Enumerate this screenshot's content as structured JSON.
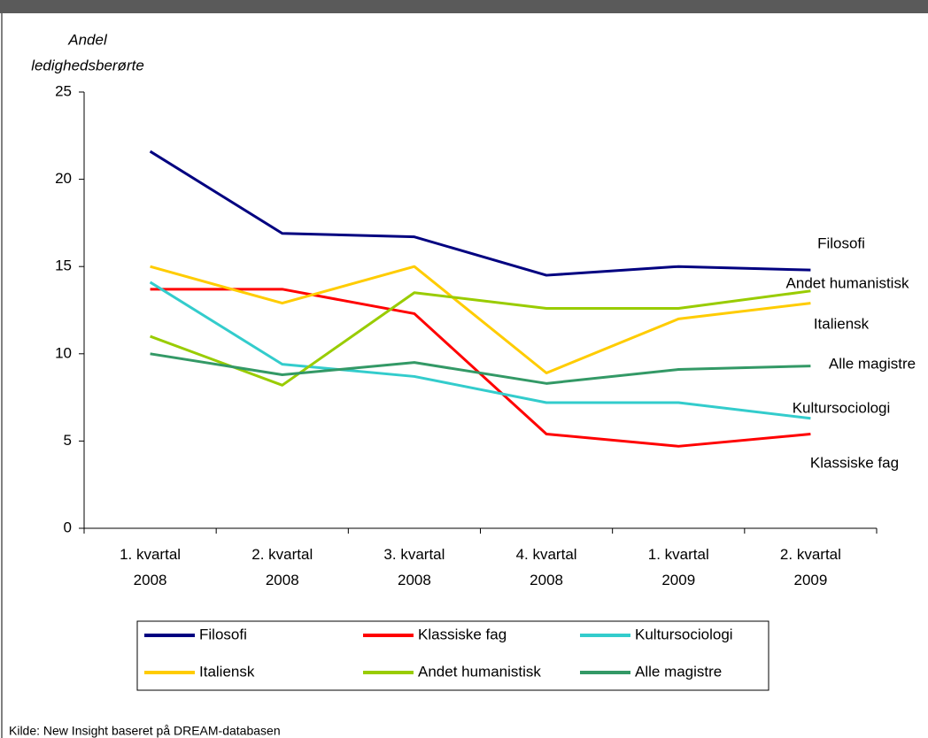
{
  "chart_data": {
    "type": "line",
    "y_axis_title": [
      "Andel",
      "ledighedsberørte"
    ],
    "categories": [
      "1. kvartal\n2008",
      "2. kvartal\n2008",
      "3. kvartal\n2008",
      "4. kvartal\n2008",
      "1. kvartal\n2009",
      "2. kvartal\n2009"
    ],
    "series": [
      {
        "name": "Filosofi",
        "color": "#000080",
        "values": [
          21.6,
          16.9,
          16.7,
          14.5,
          15.0,
          14.8
        ]
      },
      {
        "name": "Klassiske fag",
        "color": "#ff0000",
        "values": [
          13.7,
          13.7,
          12.3,
          5.4,
          4.7,
          5.4
        ]
      },
      {
        "name": "Kultursociologi",
        "color": "#33cccc",
        "values": [
          14.1,
          9.4,
          8.7,
          7.2,
          7.2,
          6.3
        ]
      },
      {
        "name": "Italiensk",
        "color": "#ffcc00",
        "values": [
          15.0,
          12.9,
          15.0,
          8.9,
          12.0,
          12.9
        ]
      },
      {
        "name": "Andet humanistisk",
        "color": "#99cc00",
        "values": [
          11.0,
          8.2,
          13.5,
          12.6,
          12.6,
          13.6
        ]
      },
      {
        "name": "Alle magistre",
        "color": "#339966",
        "values": [
          10.0,
          8.8,
          9.5,
          8.3,
          9.1,
          9.3
        ]
      }
    ],
    "ylim": [
      0,
      25
    ],
    "yticks": [
      0,
      5,
      10,
      15,
      20,
      25
    ],
    "legend": "bottom",
    "source": "Kilde: New Insight baseret på DREAM-databasen"
  }
}
